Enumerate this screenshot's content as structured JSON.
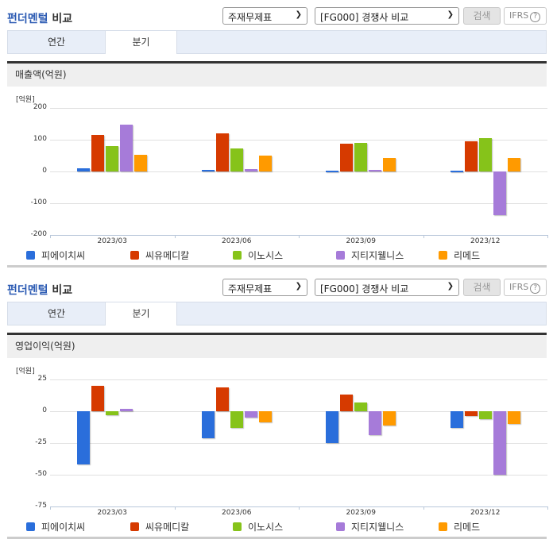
{
  "panels": [
    {
      "title_accent": "펀더멘털",
      "title_rest": " 비교",
      "select1": "주재무제표",
      "select2": "[FG000] 경쟁사 비교",
      "search_label": "검색",
      "ifrs_label": "IFRS",
      "help_glyph": "?",
      "tabs": [
        {
          "label": "연간"
        },
        {
          "label": "분기"
        }
      ],
      "active_tab": 1,
      "metric_label": "매출액(억원)"
    },
    {
      "title_accent": "펀더멘털",
      "title_rest": " 비교",
      "select1": "주재무제표",
      "select2": "[FG000] 경쟁사 비교",
      "search_label": "검색",
      "ifrs_label": "IFRS",
      "help_glyph": "?",
      "tabs": [
        {
          "label": "연간"
        },
        {
          "label": "분기"
        }
      ],
      "active_tab": 1,
      "metric_label": "영업이익(억원)"
    }
  ],
  "legend": [
    {
      "name": "피에이치씨",
      "color": "#2a6edb"
    },
    {
      "name": "씨유메디칼",
      "color": "#d63a00"
    },
    {
      "name": "이노시스",
      "color": "#86c31a"
    },
    {
      "name": "지티지웰니스",
      "color": "#a67bd9"
    },
    {
      "name": "리메드",
      "color": "#ff9a00"
    }
  ],
  "chart_data": [
    {
      "type": "bar",
      "title": "매출액(억원)",
      "unit_label": "[억원]",
      "xlabel": "",
      "ylabel": "억원",
      "categories": [
        "2023/03",
        "2023/06",
        "2023/09",
        "2023/12"
      ],
      "ylim": [
        -200,
        200
      ],
      "yticks": [
        200,
        100,
        0,
        -100,
        -200
      ],
      "grid": true,
      "legend_position": "bottom",
      "series": [
        {
          "name": "피에이치씨",
          "values": [
            10,
            5,
            2,
            2
          ]
        },
        {
          "name": "씨유메디칼",
          "values": [
            115,
            120,
            87,
            95
          ]
        },
        {
          "name": "이노시스",
          "values": [
            80,
            72,
            90,
            105
          ]
        },
        {
          "name": "지티지웰니스",
          "values": [
            147,
            8,
            4,
            -138
          ]
        },
        {
          "name": "리메드",
          "values": [
            52,
            50,
            42,
            42
          ]
        }
      ]
    },
    {
      "type": "bar",
      "title": "영업이익(억원)",
      "unit_label": "[억원]",
      "xlabel": "",
      "ylabel": "억원",
      "categories": [
        "2023/03",
        "2023/06",
        "2023/09",
        "2023/12"
      ],
      "ylim": [
        -75,
        25
      ],
      "yticks": [
        25,
        0,
        -25,
        -50,
        -75
      ],
      "grid": true,
      "legend_position": "bottom",
      "series": [
        {
          "name": "피에이치씨",
          "values": [
            -42,
            -21,
            -25,
            -13
          ]
        },
        {
          "name": "씨유메디칼",
          "values": [
            20,
            19,
            13,
            -4
          ]
        },
        {
          "name": "이노시스",
          "values": [
            -3,
            -13,
            7,
            -6
          ]
        },
        {
          "name": "지티지웰니스",
          "values": [
            2,
            -5,
            -19,
            -50
          ]
        },
        {
          "name": "리메드",
          "values": [
            0,
            -9,
            -11,
            -10
          ]
        }
      ]
    }
  ]
}
